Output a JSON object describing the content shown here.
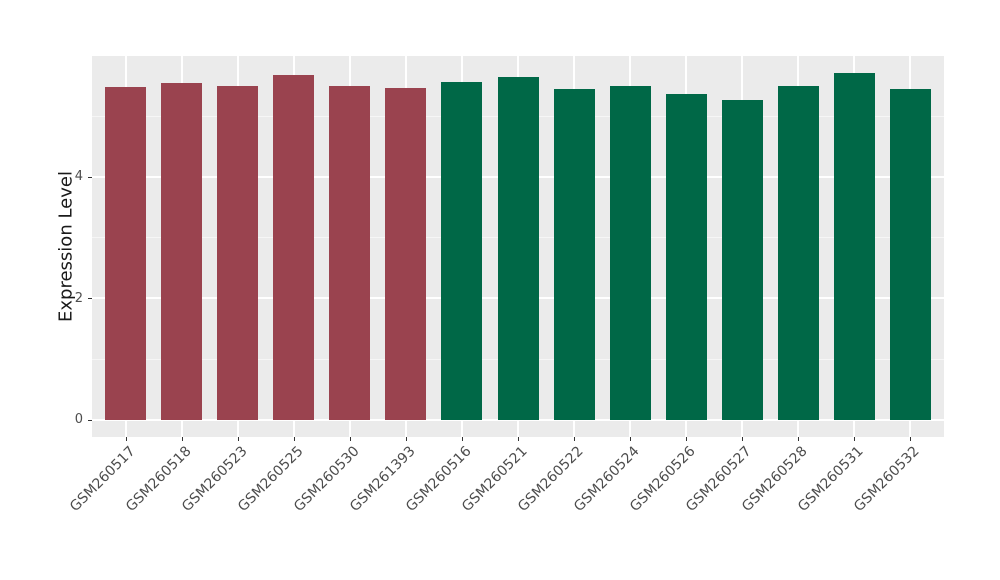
{
  "chart_data": {
    "type": "bar",
    "title": "",
    "xlabel": "",
    "ylabel": "Expression Level",
    "categories": [
      "GSM260517",
      "GSM260518",
      "GSM260523",
      "GSM260525",
      "GSM260530",
      "GSM261393",
      "GSM260516",
      "GSM260521",
      "GSM260522",
      "GSM260524",
      "GSM260526",
      "GSM260527",
      "GSM260528",
      "GSM260531",
      "GSM260532"
    ],
    "values": [
      5.47,
      5.54,
      5.48,
      5.66,
      5.49,
      5.45,
      5.56,
      5.63,
      5.43,
      5.48,
      5.36,
      5.26,
      5.48,
      5.7,
      5.44
    ],
    "bar_colors": [
      "#9A434F",
      "#9A434F",
      "#9A434F",
      "#9A434F",
      "#9A434F",
      "#9A434F",
      "#006847",
      "#006847",
      "#006847",
      "#006847",
      "#006847",
      "#006847",
      "#006847",
      "#006847",
      "#006847"
    ],
    "group_colors": {
      "group1": "#9A434F",
      "group2": "#006847"
    },
    "yticks": [
      0,
      2,
      4
    ],
    "ytick_labels": [
      "0",
      "2",
      "4"
    ],
    "minor_yticks": [
      1,
      3,
      5
    ],
    "ylim": [
      -0.28,
      5.98
    ],
    "grid": "on",
    "legend": "none",
    "panel_background": "#EBEBEB",
    "grid_major_color": "#FFFFFF"
  }
}
